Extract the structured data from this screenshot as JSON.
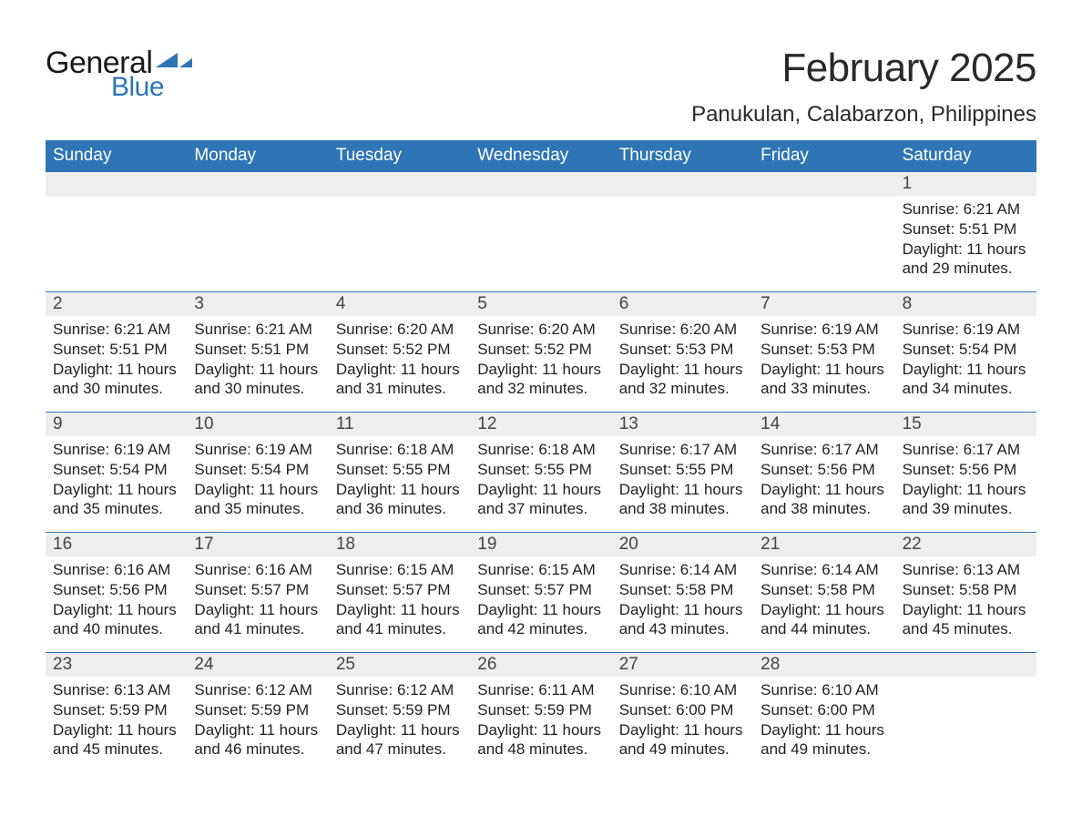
{
  "brand": {
    "general": "General",
    "blue": "Blue",
    "flag_color": "#2e75b6"
  },
  "title": {
    "month": "February 2025",
    "location": "Panukulan, Calabarzon, Philippines"
  },
  "colors": {
    "header_bg": "#2e75b6",
    "header_text": "#ffffff",
    "daynum_bg": "#eeeeee",
    "rule": "#2e75b6",
    "text": "#222222",
    "background": "#ffffff"
  },
  "weekdays": [
    "Sunday",
    "Monday",
    "Tuesday",
    "Wednesday",
    "Thursday",
    "Friday",
    "Saturday"
  ],
  "labels": {
    "sunrise": "Sunrise:",
    "sunset": "Sunset:",
    "daylight": "Daylight:"
  },
  "weeks": [
    [
      null,
      null,
      null,
      null,
      null,
      null,
      {
        "d": "1",
        "sr": "6:21 AM",
        "ss": "5:51 PM",
        "dl": "11 hours and 29 minutes."
      }
    ],
    [
      {
        "d": "2",
        "sr": "6:21 AM",
        "ss": "5:51 PM",
        "dl": "11 hours and 30 minutes."
      },
      {
        "d": "3",
        "sr": "6:21 AM",
        "ss": "5:51 PM",
        "dl": "11 hours and 30 minutes."
      },
      {
        "d": "4",
        "sr": "6:20 AM",
        "ss": "5:52 PM",
        "dl": "11 hours and 31 minutes."
      },
      {
        "d": "5",
        "sr": "6:20 AM",
        "ss": "5:52 PM",
        "dl": "11 hours and 32 minutes."
      },
      {
        "d": "6",
        "sr": "6:20 AM",
        "ss": "5:53 PM",
        "dl": "11 hours and 32 minutes."
      },
      {
        "d": "7",
        "sr": "6:19 AM",
        "ss": "5:53 PM",
        "dl": "11 hours and 33 minutes."
      },
      {
        "d": "8",
        "sr": "6:19 AM",
        "ss": "5:54 PM",
        "dl": "11 hours and 34 minutes."
      }
    ],
    [
      {
        "d": "9",
        "sr": "6:19 AM",
        "ss": "5:54 PM",
        "dl": "11 hours and 35 minutes."
      },
      {
        "d": "10",
        "sr": "6:19 AM",
        "ss": "5:54 PM",
        "dl": "11 hours and 35 minutes."
      },
      {
        "d": "11",
        "sr": "6:18 AM",
        "ss": "5:55 PM",
        "dl": "11 hours and 36 minutes."
      },
      {
        "d": "12",
        "sr": "6:18 AM",
        "ss": "5:55 PM",
        "dl": "11 hours and 37 minutes."
      },
      {
        "d": "13",
        "sr": "6:17 AM",
        "ss": "5:55 PM",
        "dl": "11 hours and 38 minutes."
      },
      {
        "d": "14",
        "sr": "6:17 AM",
        "ss": "5:56 PM",
        "dl": "11 hours and 38 minutes."
      },
      {
        "d": "15",
        "sr": "6:17 AM",
        "ss": "5:56 PM",
        "dl": "11 hours and 39 minutes."
      }
    ],
    [
      {
        "d": "16",
        "sr": "6:16 AM",
        "ss": "5:56 PM",
        "dl": "11 hours and 40 minutes."
      },
      {
        "d": "17",
        "sr": "6:16 AM",
        "ss": "5:57 PM",
        "dl": "11 hours and 41 minutes."
      },
      {
        "d": "18",
        "sr": "6:15 AM",
        "ss": "5:57 PM",
        "dl": "11 hours and 41 minutes."
      },
      {
        "d": "19",
        "sr": "6:15 AM",
        "ss": "5:57 PM",
        "dl": "11 hours and 42 minutes."
      },
      {
        "d": "20",
        "sr": "6:14 AM",
        "ss": "5:58 PM",
        "dl": "11 hours and 43 minutes."
      },
      {
        "d": "21",
        "sr": "6:14 AM",
        "ss": "5:58 PM",
        "dl": "11 hours and 44 minutes."
      },
      {
        "d": "22",
        "sr": "6:13 AM",
        "ss": "5:58 PM",
        "dl": "11 hours and 45 minutes."
      }
    ],
    [
      {
        "d": "23",
        "sr": "6:13 AM",
        "ss": "5:59 PM",
        "dl": "11 hours and 45 minutes."
      },
      {
        "d": "24",
        "sr": "6:12 AM",
        "ss": "5:59 PM",
        "dl": "11 hours and 46 minutes."
      },
      {
        "d": "25",
        "sr": "6:12 AM",
        "ss": "5:59 PM",
        "dl": "11 hours and 47 minutes."
      },
      {
        "d": "26",
        "sr": "6:11 AM",
        "ss": "5:59 PM",
        "dl": "11 hours and 48 minutes."
      },
      {
        "d": "27",
        "sr": "6:10 AM",
        "ss": "6:00 PM",
        "dl": "11 hours and 49 minutes."
      },
      {
        "d": "28",
        "sr": "6:10 AM",
        "ss": "6:00 PM",
        "dl": "11 hours and 49 minutes."
      },
      null
    ]
  ]
}
